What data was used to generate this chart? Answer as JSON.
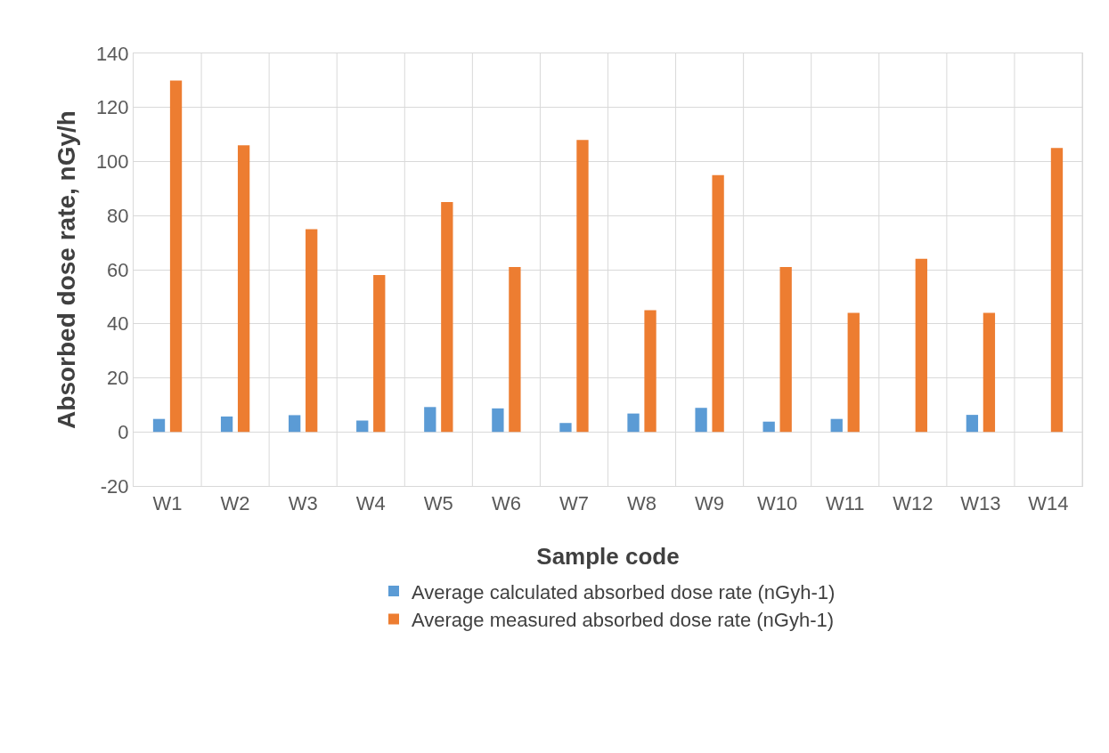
{
  "chart_data": {
    "type": "bar",
    "xlabel": "Sample code",
    "ylabel": "Absorbed dose rate, nGy/h",
    "categories": [
      "W1",
      "W2",
      "W3",
      "W4",
      "W5",
      "W6",
      "W7",
      "W8",
      "W9",
      "W10",
      "W11",
      "W12",
      "W13",
      "W14"
    ],
    "series": [
      {
        "name": "Average calculated absorbed dose rate (nGyh-1)",
        "color": "#5b9bd5",
        "values": [
          4.8,
          5.7,
          6.2,
          4.2,
          9.2,
          8.7,
          3.3,
          6.8,
          8.9,
          3.8,
          4.8,
          null,
          6.3,
          null
        ]
      },
      {
        "name": "Average measured absorbed dose rate (nGyh-1)",
        "color": "#ed7d31",
        "values": [
          130,
          106,
          75,
          58,
          85,
          61,
          108,
          45,
          95,
          61,
          44,
          64,
          44,
          105
        ]
      }
    ],
    "ylim": [
      -20,
      140
    ],
    "yticks": [
      -20,
      0,
      20,
      40,
      60,
      80,
      100,
      120,
      140
    ],
    "grid": true,
    "legend": "bottom"
  }
}
